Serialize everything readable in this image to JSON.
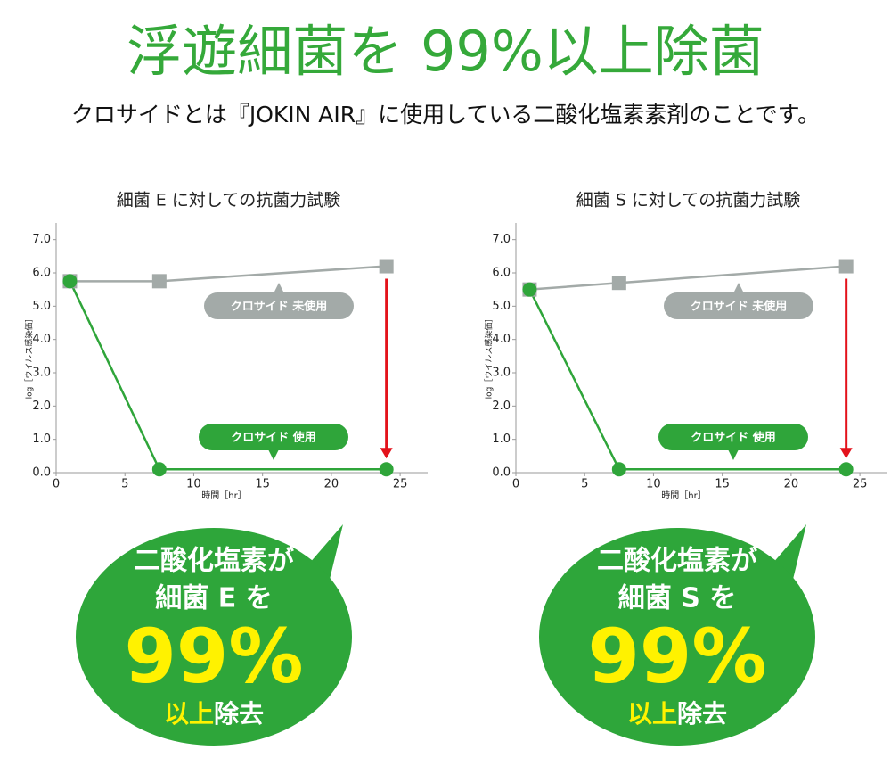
{
  "header": {
    "title": "浮遊細菌を 99%以上除菌",
    "subtitle": "クロサイドとは『JOKIN AIR』に使用している二酸化塩素素剤のことです。"
  },
  "chart_data": [
    {
      "type": "line",
      "title": "細菌 E に対しての抗菌力試験",
      "x_label": "時間［hr］",
      "y_label": "log［ウイルス感染価］",
      "x": [
        1,
        7.5,
        24
      ],
      "xlim": [
        0,
        27
      ],
      "xticks": [
        0,
        5,
        10,
        15,
        20,
        25
      ],
      "ylim": [
        0,
        7.5
      ],
      "yticks": [
        {
          "value": 0,
          "label": "0.0"
        },
        {
          "value": 1,
          "label": "1.0"
        },
        {
          "value": 2,
          "label": "2.0"
        },
        {
          "value": 3,
          "label": "3.0"
        },
        {
          "value": 4,
          "label": "4.0"
        },
        {
          "value": 5,
          "label": "5.0"
        },
        {
          "value": 6,
          "label": "6.0"
        },
        {
          "value": 7,
          "label": "7.0"
        }
      ],
      "series": [
        {
          "name": "クロサイド 未使用",
          "color": "#a3aaa8",
          "marker": "square",
          "values": [
            5.75,
            5.75,
            6.2
          ]
        },
        {
          "name": "クロサイド 使用",
          "color": "#2fa53a",
          "marker": "circle",
          "values": [
            5.75,
            0.1,
            0.1
          ]
        }
      ]
    },
    {
      "type": "line",
      "title": "細菌 S に対しての抗菌力試験",
      "x_label": "時間［hr］",
      "y_label": "log［ウイルス感染価］",
      "x": [
        1,
        7.5,
        24
      ],
      "xlim": [
        0,
        27
      ],
      "xticks": [
        0,
        5,
        10,
        15,
        20,
        25
      ],
      "ylim": [
        0,
        7.5
      ],
      "yticks": [
        {
          "value": 0,
          "label": "0.0"
        },
        {
          "value": 1,
          "label": "1.0"
        },
        {
          "value": 2,
          "label": "2.0"
        },
        {
          "value": 3,
          "label": "3.0"
        },
        {
          "value": 4,
          "label": "4.0"
        },
        {
          "value": 5,
          "label": "5.0"
        },
        {
          "value": 6,
          "label": "6.0"
        },
        {
          "value": 7,
          "label": "7.0"
        }
      ],
      "series": [
        {
          "name": "クロサイド 未使用",
          "color": "#a3aaa8",
          "marker": "square",
          "values": [
            5.5,
            5.7,
            6.2
          ]
        },
        {
          "name": "クロサイド 使用",
          "color": "#2fa53a",
          "marker": "circle",
          "values": [
            5.5,
            0.1,
            0.1
          ]
        }
      ]
    }
  ],
  "callouts": [
    {
      "line1": "二酸化塩素が",
      "line2": "細菌 E を",
      "big": "99%",
      "highlight": "以上",
      "rest": "除去"
    },
    {
      "line1": "二酸化塩素が",
      "line2": "細菌 S を",
      "big": "99%",
      "highlight": "以上",
      "rest": "除去"
    }
  ]
}
